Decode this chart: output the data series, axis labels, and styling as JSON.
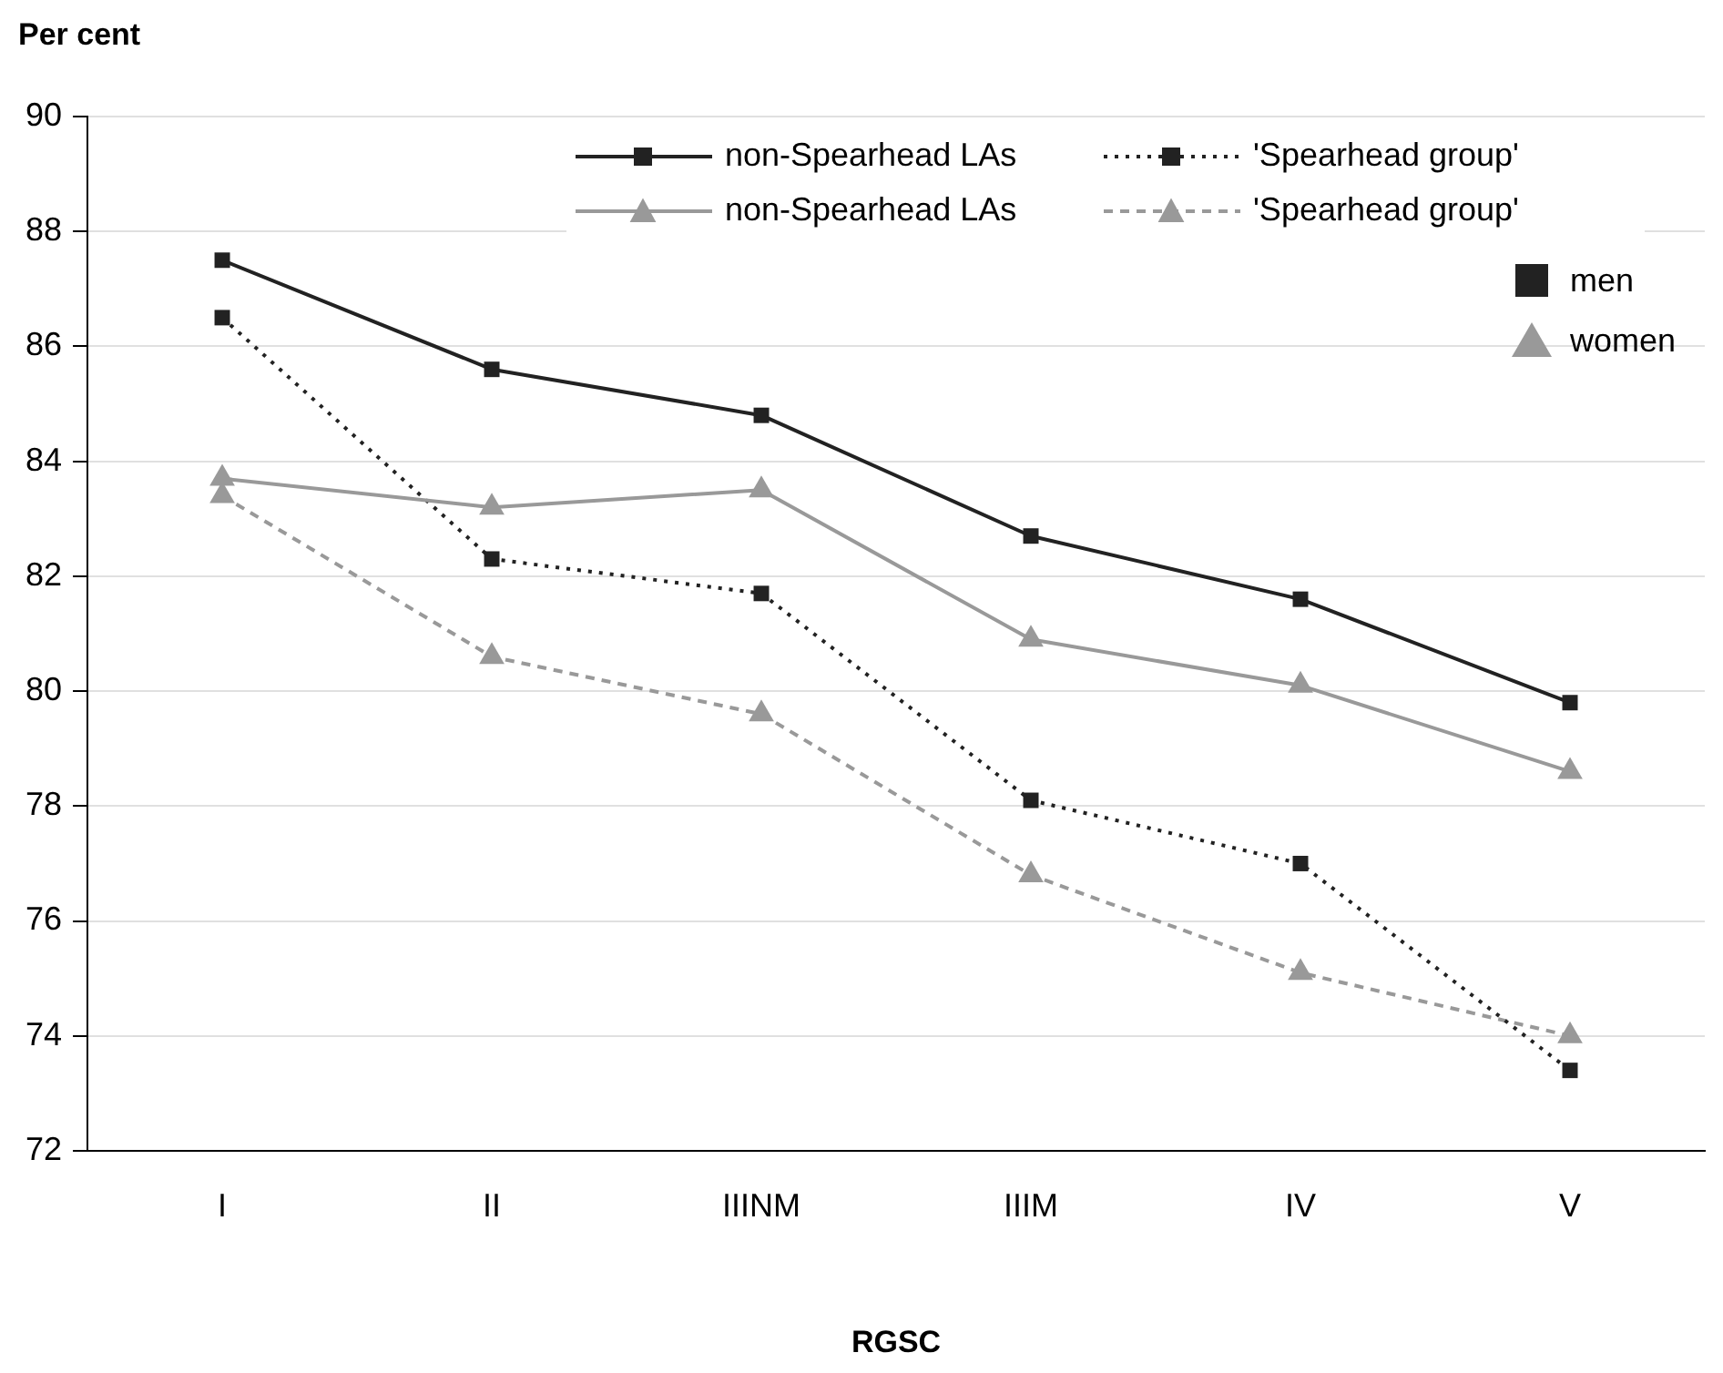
{
  "chart_data": {
    "type": "line",
    "ylabel": "Per cent",
    "xlabel": "RGSC",
    "categories": [
      "I",
      "II",
      "IIINM",
      "IIIM",
      "IV",
      "V"
    ],
    "series": [
      {
        "name": "non-Spearhead LAs",
        "color": "#222222",
        "line_style": "solid",
        "marker": "square",
        "values": [
          87.5,
          85.6,
          84.8,
          82.7,
          81.6,
          79.8
        ]
      },
      {
        "name": "non-Spearhead LAs",
        "color": "#999999",
        "line_style": "solid",
        "marker": "triangle",
        "values": [
          83.7,
          83.2,
          83.5,
          80.9,
          80.1,
          78.6
        ]
      },
      {
        "name": "'Spearhead group'",
        "color": "#222222",
        "line_style": "dotted",
        "marker": "square",
        "values": [
          86.5,
          82.3,
          81.7,
          78.1,
          77.0,
          73.4
        ]
      },
      {
        "name": "'Spearhead group'",
        "color": "#999999",
        "line_style": "dashed",
        "marker": "triangle",
        "values": [
          83.4,
          80.6,
          79.6,
          76.8,
          75.1,
          74.0
        ]
      }
    ],
    "annotations": [
      "men",
      "women"
    ],
    "ylim": [
      72,
      90
    ],
    "yticks": [
      72,
      74,
      76,
      78,
      80,
      82,
      84,
      86,
      88,
      90
    ],
    "grid": "y",
    "legend": "top right"
  }
}
